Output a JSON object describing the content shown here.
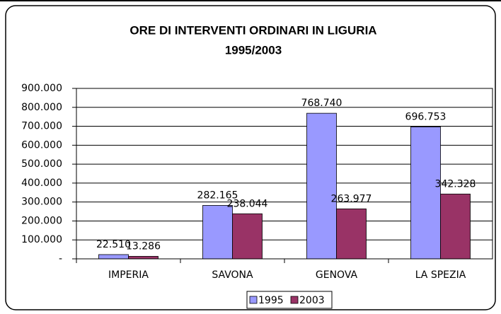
{
  "chart_data": {
    "type": "bar",
    "title": "ORE DI INTERVENTI ORDINARI IN LIGURIA",
    "subtitle": "1995/2003",
    "categories": [
      "IMPERIA",
      "SAVONA",
      "GENOVA",
      "LA SPEZIA"
    ],
    "series": [
      {
        "name": "1995",
        "color": "#9999ff",
        "values": [
          22510,
          282165,
          768740,
          696753
        ],
        "value_labels": [
          "22.510",
          "282.165",
          "768.740",
          "696.753"
        ]
      },
      {
        "name": "2003",
        "color": "#993366",
        "values": [
          13286,
          238044,
          263977,
          342328
        ],
        "value_labels": [
          "13.286",
          "238.044",
          "263.977",
          "342.328"
        ]
      }
    ],
    "ylim": [
      0,
      900000
    ],
    "yticks": [
      {
        "value": 0,
        "label": "-"
      },
      {
        "value": 100000,
        "label": "100.000"
      },
      {
        "value": 200000,
        "label": "200.000"
      },
      {
        "value": 300000,
        "label": "300.000"
      },
      {
        "value": 400000,
        "label": "400.000"
      },
      {
        "value": 500000,
        "label": "500.000"
      },
      {
        "value": 600000,
        "label": "600.000"
      },
      {
        "value": 700000,
        "label": "700.000"
      },
      {
        "value": 800000,
        "label": "800.000"
      },
      {
        "value": 900000,
        "label": "900.000"
      }
    ],
    "grid": true,
    "legend": "bottom"
  }
}
